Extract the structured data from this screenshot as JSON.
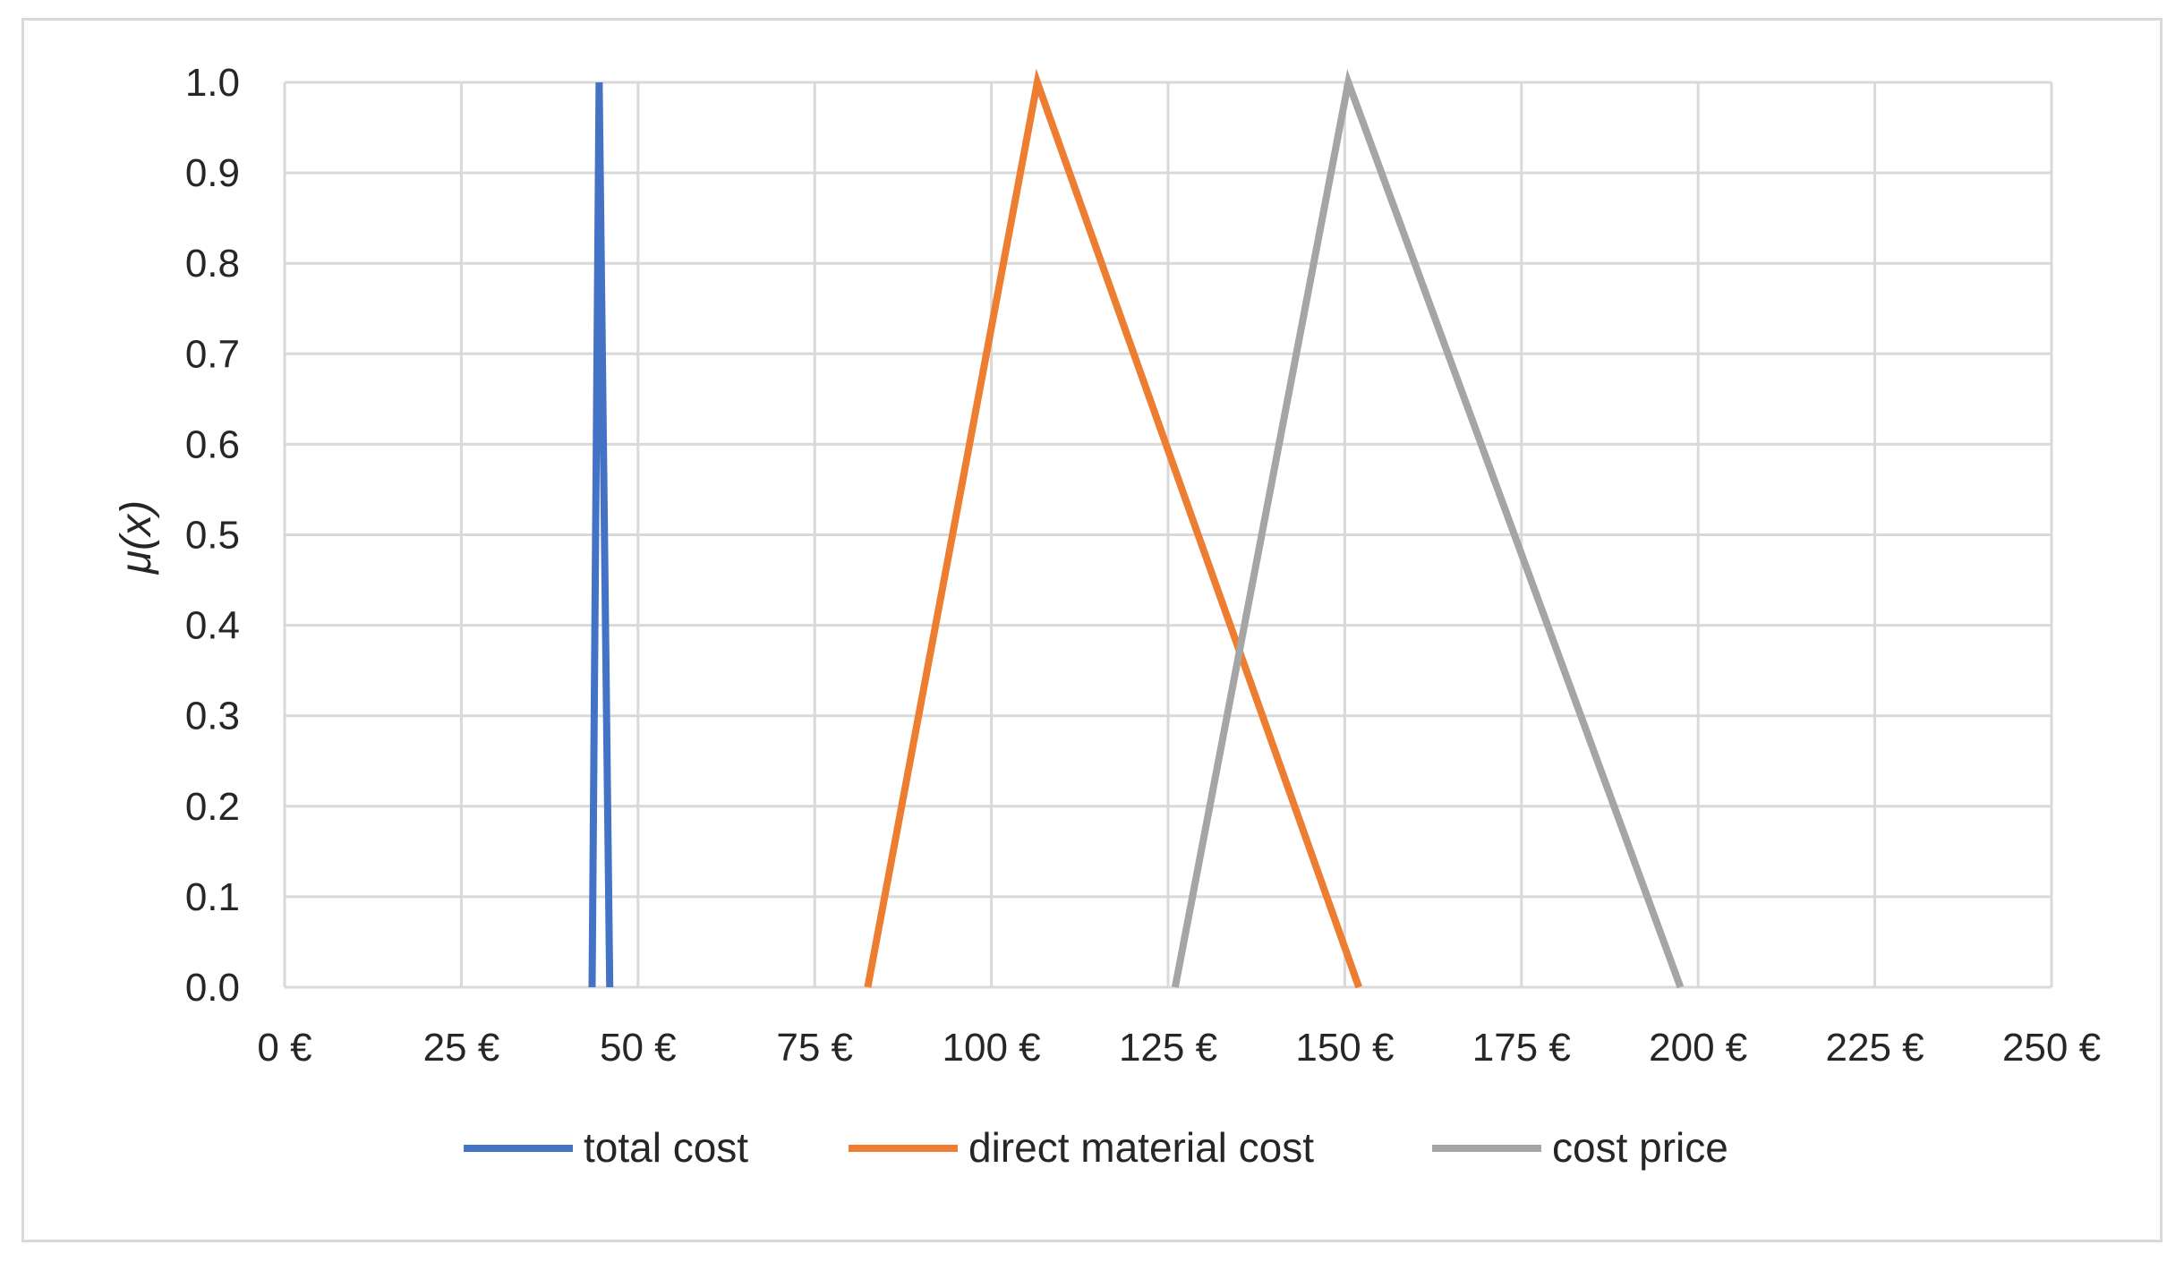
{
  "chart_data": {
    "type": "line",
    "title": "",
    "xlabel": "",
    "ylabel": "μ(x)",
    "xlim": [
      0,
      250
    ],
    "ylim": [
      0,
      1
    ],
    "x_ticks": [
      0,
      25,
      50,
      75,
      100,
      125,
      150,
      175,
      200,
      225,
      250
    ],
    "x_tick_labels": [
      "0 €",
      "25 €",
      "50 €",
      "75 €",
      "100 €",
      "125 €",
      "150 €",
      "175 €",
      "200 €",
      "225 €",
      "250 €"
    ],
    "y_ticks": [
      0.0,
      0.1,
      0.2,
      0.3,
      0.4,
      0.5,
      0.6,
      0.7,
      0.8,
      0.9,
      1.0
    ],
    "y_tick_labels": [
      "0.0",
      "0.1",
      "0.2",
      "0.3",
      "0.4",
      "0.5",
      "0.6",
      "0.7",
      "0.8",
      "0.9",
      "1.0"
    ],
    "grid": true,
    "legend_position": "bottom",
    "series": [
      {
        "name": "total cost",
        "color": "#4472c4",
        "x": [
          43.5,
          44.5,
          46
        ],
        "y": [
          0,
          1,
          0
        ]
      },
      {
        "name": "direct material cost",
        "color": "#ed7d31",
        "x": [
          82.5,
          106.5,
          152
        ],
        "y": [
          0,
          1,
          0
        ]
      },
      {
        "name": "cost price",
        "color": "#a5a5a5",
        "x": [
          126,
          150.5,
          197.5
        ],
        "y": [
          0,
          1,
          0
        ]
      }
    ]
  }
}
